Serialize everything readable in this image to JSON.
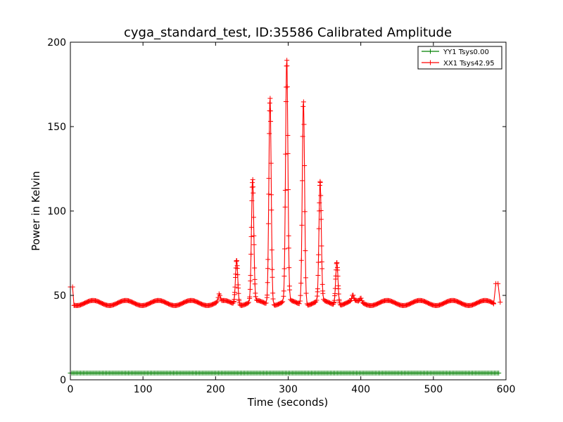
{
  "chart_data": {
    "type": "line",
    "title": "cyga_standard_test, ID:35586 Calibrated Amplitude",
    "xlabel": "Time (seconds)",
    "ylabel": "Power in Kelvin",
    "xlim": [
      0,
      600
    ],
    "ylim": [
      0,
      200
    ],
    "xticks": [
      0,
      100,
      200,
      300,
      400,
      500,
      600
    ],
    "yticks": [
      0,
      50,
      100,
      150,
      200
    ],
    "grid": false,
    "legend_position": "top-right",
    "series": [
      {
        "name": "YY1 Tsys0.00",
        "color": "#008000",
        "marker": "+",
        "sample_interval": 2,
        "x": [
          0,
          590
        ],
        "y": [
          4,
          4
        ]
      },
      {
        "name": "XX1 Tsys42.95",
        "color": "#ff0000",
        "marker": "+",
        "baseline_period": 45,
        "baseline_level": 45.5,
        "baseline_amplitude": 1.5,
        "start_points": [
          {
            "x": 0,
            "y": 55
          },
          {
            "x": 3,
            "y": 55
          },
          {
            "x": 5,
            "y": 44
          }
        ],
        "end_points": [
          {
            "x": 583,
            "y": 45
          },
          {
            "x": 586,
            "y": 57
          },
          {
            "x": 589,
            "y": 57
          },
          {
            "x": 592,
            "y": 46
          }
        ],
        "peaks": [
          {
            "x": 205,
            "y": 50
          },
          {
            "x": 229,
            "y": 72
          },
          {
            "x": 251,
            "y": 118
          },
          {
            "x": 275,
            "y": 169
          },
          {
            "x": 298,
            "y": 189
          },
          {
            "x": 321,
            "y": 167
          },
          {
            "x": 344,
            "y": 116
          },
          {
            "x": 367,
            "y": 71
          },
          {
            "x": 389,
            "y": 49
          },
          {
            "x": 400,
            "y": 48
          }
        ],
        "x_end": 592
      }
    ]
  }
}
